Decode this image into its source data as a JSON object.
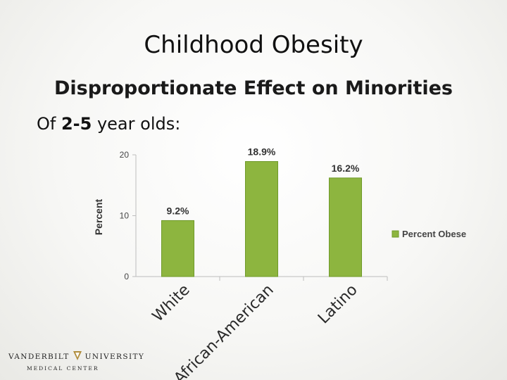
{
  "slide": {
    "title": "Childhood Obesity",
    "subtitle": "Disproportionate Effect on Minorities",
    "lead_prefix": "Of ",
    "lead_bold": "2-5",
    "lead_suffix": " year olds:"
  },
  "chart_data": {
    "type": "bar",
    "categories": [
      "White",
      "African-American",
      "Latino"
    ],
    "series": [
      {
        "name": "Percent Obese",
        "values": [
          9.2,
          18.9,
          16.2
        ],
        "labels": [
          "9.2%",
          "18.9%",
          "16.2%"
        ]
      }
    ],
    "ylabel": "Percent",
    "ylim": [
      0,
      20
    ],
    "yticks": [
      0,
      10,
      20
    ],
    "legend": "right",
    "grid": false,
    "colors": {
      "bar": "#8db53f",
      "bar_border": "#6f9a2a",
      "axis": "#bdbdbd"
    }
  },
  "logo": {
    "left_word": "VANDERBILT",
    "right_word": "UNIVERSITY",
    "bottom": "MEDICAL CENTER"
  }
}
